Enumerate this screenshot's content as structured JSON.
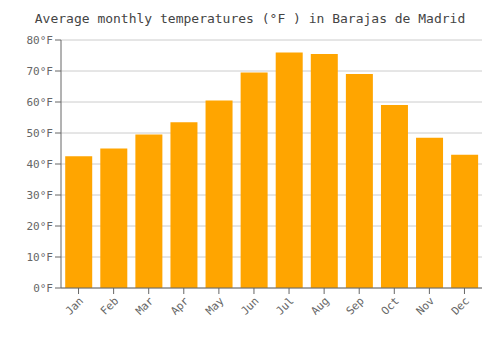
{
  "chart_data": {
    "type": "bar",
    "title": "Average monthly temperatures (°F ) in Barajas de Madrid",
    "categories": [
      "Jan",
      "Feb",
      "Mar",
      "Apr",
      "May",
      "Jun",
      "Jul",
      "Aug",
      "Sep",
      "Oct",
      "Nov",
      "Dec"
    ],
    "values": [
      42.5,
      45.0,
      49.5,
      53.5,
      60.5,
      69.5,
      76.0,
      75.5,
      69.0,
      59.0,
      48.5,
      43.0
    ],
    "color": "#FFA500",
    "ylim": [
      0,
      80
    ],
    "yticks": [
      {
        "value": 0,
        "label": "0°F"
      },
      {
        "value": 10,
        "label": "10°F"
      },
      {
        "value": 20,
        "label": "20°F"
      },
      {
        "value": 30,
        "label": "30°F"
      },
      {
        "value": 40,
        "label": "40°F"
      },
      {
        "value": 50,
        "label": "50°F"
      },
      {
        "value": 60,
        "label": "60°F"
      },
      {
        "value": 70,
        "label": "70°F"
      },
      {
        "value": 80,
        "label": "80°F"
      }
    ],
    "grid": true
  }
}
